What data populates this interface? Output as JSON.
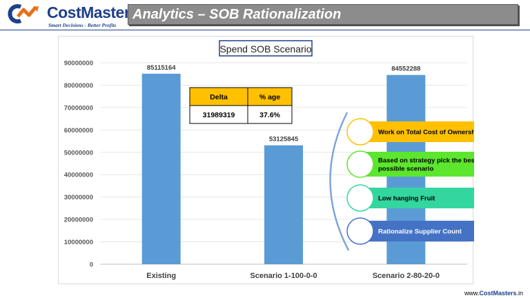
{
  "logo": {
    "cost": "Cost",
    "masters": "Masters",
    "tagline": "Smart Decisions - Better Profits"
  },
  "header": {
    "title": "Analytics – SOB Rationalization"
  },
  "chart_data": {
    "type": "bar",
    "title": "Spend SOB Scenario",
    "categories": [
      "Existing",
      "Scenario 1-100-0-0",
      "Scenario 2-80-20-0"
    ],
    "values": [
      85115164,
      53125845,
      84552288
    ],
    "data_labels": [
      "85115164",
      "53125845",
      "84552288"
    ],
    "ylim": [
      0,
      90000000
    ],
    "yticks": [
      0,
      10000000,
      20000000,
      30000000,
      40000000,
      50000000,
      60000000,
      70000000,
      80000000,
      90000000
    ],
    "grid": true,
    "bar_color": "#5b9bd5"
  },
  "delta_table": {
    "headers": [
      "Delta",
      "% age"
    ],
    "row": [
      "31989319",
      "37.6%"
    ],
    "header_color": "#ffc000"
  },
  "callouts": [
    {
      "text": "Work on Total Cost of Ownership",
      "color": "#ffc000",
      "text_color": "#000000"
    },
    {
      "text": "Based on strategy pick the best possible scenario",
      "color": "#5ce62e",
      "text_color": "#000000"
    },
    {
      "text": "Low hanging Fruit",
      "color": "#33d69f",
      "text_color": "#000000"
    },
    {
      "text": "Rationalize Supplier Count",
      "color": "#4472c4",
      "text_color": "#ffffff"
    }
  ],
  "footer": {
    "prefix": "www.",
    "brand1": "Cost",
    "brand2": "Masters",
    "suffix": ".in"
  }
}
